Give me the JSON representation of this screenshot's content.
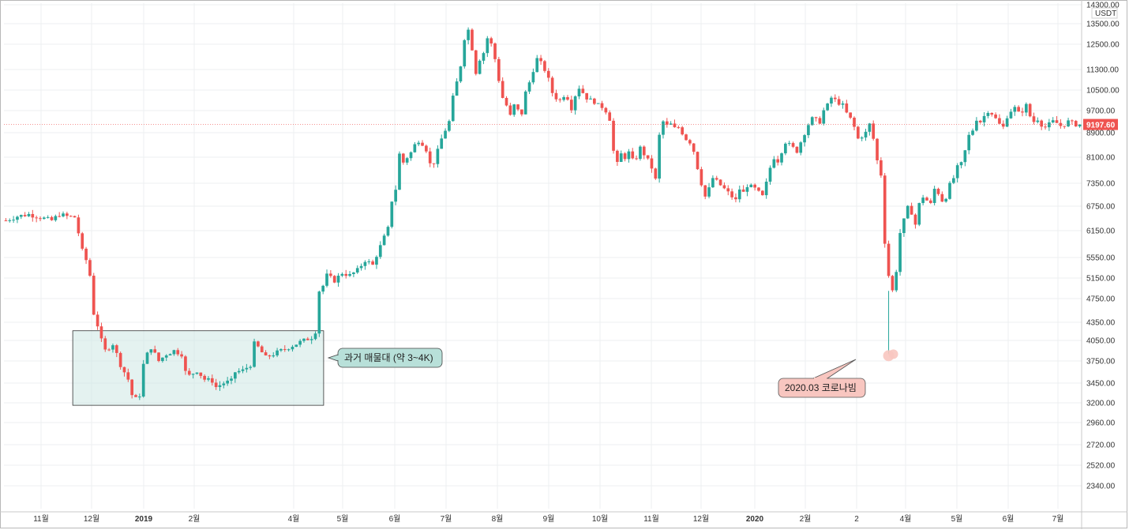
{
  "chart_data": {
    "type": "candlestick",
    "currency": "USDT",
    "last_price_label": "9197.60",
    "y_ticks": [
      "14300.00",
      "13500.00",
      "12500.00",
      "11300.00",
      "10500.00",
      "9700.00",
      "8900.00",
      "8100.00",
      "7350.00",
      "6750.00",
      "6150.00",
      "5550.00",
      "5150.00",
      "4750.00",
      "4350.00",
      "4050.00",
      "3750.00",
      "3450.00",
      "3200.00",
      "2960.00",
      "2720.00",
      "2520.00",
      "2340.00"
    ],
    "x_ticks": [
      {
        "label": "11월",
        "bold": false
      },
      {
        "label": "12월",
        "bold": false
      },
      {
        "label": "2019",
        "bold": true
      },
      {
        "label": "2월",
        "bold": false
      },
      {
        "label": "4월",
        "bold": false
      },
      {
        "label": "5월",
        "bold": false
      },
      {
        "label": "6월",
        "bold": false
      },
      {
        "label": "7월",
        "bold": false
      },
      {
        "label": "8월",
        "bold": false
      },
      {
        "label": "9월",
        "bold": false
      },
      {
        "label": "10월",
        "bold": false
      },
      {
        "label": "11월",
        "bold": false
      },
      {
        "label": "12월",
        "bold": false
      },
      {
        "label": "2020",
        "bold": true
      },
      {
        "label": "2월",
        "bold": false
      },
      {
        "label": "2",
        "bold": false
      },
      {
        "label": "4월",
        "bold": false
      },
      {
        "label": "5월",
        "bold": false
      },
      {
        "label": "6월",
        "bold": false
      },
      {
        "label": "7월",
        "bold": false
      }
    ],
    "price_path": [
      [
        0,
        6400
      ],
      [
        3,
        6500
      ],
      [
        6,
        6550
      ],
      [
        10,
        6450
      ],
      [
        12,
        6400
      ],
      [
        14,
        6550
      ],
      [
        16,
        6500
      ],
      [
        18,
        6480
      ],
      [
        19,
        6100
      ],
      [
        20,
        5700
      ],
      [
        21,
        5500
      ],
      [
        22,
        5200
      ],
      [
        23,
        4500
      ],
      [
        24,
        4300
      ],
      [
        25,
        4050
      ],
      [
        26,
        3900
      ],
      [
        28,
        4000
      ],
      [
        30,
        3700
      ],
      [
        32,
        3500
      ],
      [
        33,
        3300
      ],
      [
        34,
        3250
      ],
      [
        35,
        3300
      ],
      [
        36,
        3700
      ],
      [
        37,
        3850
      ],
      [
        38,
        3950
      ],
      [
        40,
        3750
      ],
      [
        42,
        3850
      ],
      [
        44,
        3900
      ],
      [
        46,
        3850
      ],
      [
        47,
        3600
      ],
      [
        48,
        3550
      ],
      [
        50,
        3620
      ],
      [
        52,
        3500
      ],
      [
        54,
        3480
      ],
      [
        55,
        3400
      ],
      [
        57,
        3450
      ],
      [
        59,
        3480
      ],
      [
        60,
        3600
      ],
      [
        62,
        3620
      ],
      [
        64,
        3700
      ],
      [
        65,
        4000
      ],
      [
        66,
        3950
      ],
      [
        68,
        3800
      ],
      [
        70,
        3850
      ],
      [
        72,
        3900
      ],
      [
        74,
        3950
      ],
      [
        76,
        4000
      ],
      [
        78,
        4050
      ],
      [
        80,
        4100
      ],
      [
        81,
        4200
      ],
      [
        82,
        4900
      ],
      [
        83,
        5000
      ],
      [
        84,
        5200
      ],
      [
        86,
        5100
      ],
      [
        88,
        5250
      ],
      [
        90,
        5200
      ],
      [
        92,
        5300
      ],
      [
        94,
        5500
      ],
      [
        96,
        5400
      ],
      [
        98,
        5800
      ],
      [
        100,
        6200
      ],
      [
        101,
        6900
      ],
      [
        102,
        7200
      ],
      [
        103,
        8200
      ],
      [
        104,
        7950
      ],
      [
        105,
        8100
      ],
      [
        106,
        8250
      ],
      [
        107,
        8500
      ],
      [
        108,
        8650
      ],
      [
        109,
        8550
      ],
      [
        110,
        8350
      ],
      [
        111,
        7900
      ],
      [
        112,
        7950
      ],
      [
        113,
        8300
      ],
      [
        114,
        8700
      ],
      [
        115,
        9000
      ],
      [
        116,
        9300
      ],
      [
        117,
        10200
      ],
      [
        118,
        10800
      ],
      [
        119,
        11500
      ],
      [
        120,
        12800
      ],
      [
        121,
        13200
      ],
      [
        122,
        12300
      ],
      [
        123,
        11200
      ],
      [
        124,
        11800
      ],
      [
        125,
        12100
      ],
      [
        126,
        12800
      ],
      [
        127,
        12500
      ],
      [
        128,
        11800
      ],
      [
        129,
        10900
      ],
      [
        130,
        10200
      ],
      [
        131,
        9900
      ],
      [
        132,
        9500
      ],
      [
        133,
        9900
      ],
      [
        134,
        9700
      ],
      [
        135,
        9600
      ],
      [
        136,
        10400
      ],
      [
        137,
        10800
      ],
      [
        138,
        11300
      ],
      [
        139,
        11800
      ],
      [
        140,
        11600
      ],
      [
        141,
        11300
      ],
      [
        142,
        10900
      ],
      [
        143,
        10400
      ],
      [
        144,
        10200
      ],
      [
        145,
        10100
      ],
      [
        146,
        10300
      ],
      [
        147,
        10200
      ],
      [
        148,
        9800
      ],
      [
        149,
        10300
      ],
      [
        150,
        10600
      ],
      [
        151,
        10400
      ],
      [
        152,
        10200
      ],
      [
        153,
        10100
      ],
      [
        154,
        10050
      ],
      [
        155,
        9900
      ],
      [
        156,
        9850
      ],
      [
        157,
        9700
      ],
      [
        158,
        9400
      ],
      [
        159,
        8300
      ],
      [
        160,
        7900
      ],
      [
        161,
        8200
      ],
      [
        162,
        8100
      ],
      [
        163,
        8250
      ],
      [
        164,
        8000
      ],
      [
        165,
        8100
      ],
      [
        166,
        8400
      ],
      [
        167,
        8200
      ],
      [
        168,
        8000
      ],
      [
        169,
        7800
      ],
      [
        170,
        7450
      ],
      [
        171,
        8800
      ],
      [
        172,
        9300
      ],
      [
        173,
        9150
      ],
      [
        174,
        9200
      ],
      [
        175,
        9050
      ],
      [
        176,
        9100
      ],
      [
        177,
        8900
      ],
      [
        178,
        8700
      ],
      [
        179,
        8600
      ],
      [
        180,
        8300
      ],
      [
        181,
        7800
      ],
      [
        182,
        7350
      ],
      [
        183,
        7000
      ],
      [
        184,
        7200
      ],
      [
        185,
        7500
      ],
      [
        186,
        7400
      ],
      [
        187,
        7300
      ],
      [
        188,
        7200
      ],
      [
        189,
        7100
      ],
      [
        190,
        7000
      ],
      [
        191,
        6900
      ],
      [
        192,
        7200
      ],
      [
        193,
        7100
      ],
      [
        194,
        7300
      ],
      [
        195,
        7250
      ],
      [
        196,
        7200
      ],
      [
        197,
        7100
      ],
      [
        198,
        7000
      ],
      [
        199,
        7350
      ],
      [
        200,
        7800
      ],
      [
        201,
        8100
      ],
      [
        202,
        8000
      ],
      [
        203,
        8300
      ],
      [
        204,
        8600
      ],
      [
        205,
        8500
      ],
      [
        206,
        8400
      ],
      [
        207,
        8300
      ],
      [
        208,
        8600
      ],
      [
        209,
        8900
      ],
      [
        210,
        9200
      ],
      [
        211,
        9400
      ],
      [
        212,
        9350
      ],
      [
        213,
        9300
      ],
      [
        214,
        9700
      ],
      [
        215,
        9900
      ],
      [
        216,
        10200
      ],
      [
        217,
        10100
      ],
      [
        218,
        10000
      ],
      [
        219,
        9900
      ],
      [
        220,
        9600
      ],
      [
        221,
        9400
      ],
      [
        222,
        9100
      ],
      [
        223,
        8700
      ],
      [
        224,
        8800
      ],
      [
        225,
        8900
      ],
      [
        226,
        9200
      ],
      [
        227,
        8700
      ],
      [
        228,
        8000
      ],
      [
        229,
        7600
      ],
      [
        230,
        5900
      ],
      [
        231,
        5200
      ],
      [
        232,
        4900
      ],
      [
        233,
        5300
      ],
      [
        234,
        6100
      ],
      [
        235,
        6400
      ],
      [
        236,
        6700
      ],
      [
        237,
        6600
      ],
      [
        238,
        6300
      ],
      [
        239,
        6800
      ],
      [
        240,
        7000
      ],
      [
        241,
        6900
      ],
      [
        242,
        6800
      ],
      [
        243,
        7200
      ],
      [
        244,
        7100
      ],
      [
        245,
        6900
      ],
      [
        246,
        7000
      ],
      [
        247,
        7300
      ],
      [
        248,
        7500
      ],
      [
        249,
        7800
      ],
      [
        250,
        7900
      ],
      [
        251,
        8300
      ],
      [
        252,
        8800
      ],
      [
        253,
        9000
      ],
      [
        254,
        9400
      ],
      [
        255,
        9300
      ],
      [
        256,
        9500
      ],
      [
        257,
        9700
      ],
      [
        258,
        9600
      ],
      [
        259,
        9400
      ],
      [
        260,
        9200
      ],
      [
        261,
        9100
      ],
      [
        262,
        9500
      ],
      [
        263,
        9700
      ],
      [
        264,
        9800
      ],
      [
        265,
        9600
      ],
      [
        266,
        9700
      ],
      [
        267,
        9900
      ],
      [
        268,
        9500
      ],
      [
        269,
        9300
      ],
      [
        270,
        9400
      ],
      [
        271,
        9200
      ],
      [
        272,
        9100
      ],
      [
        273,
        9200
      ],
      [
        274,
        9300
      ],
      [
        275,
        9250
      ],
      [
        276,
        9150
      ],
      [
        277,
        9200
      ],
      [
        278,
        9300
      ],
      [
        279,
        9250
      ],
      [
        280,
        9200
      ],
      [
        281,
        9197.6
      ]
    ],
    "annotations": [
      {
        "id": "support-zone",
        "label": "과거 매물대 (약 3~4K)",
        "from_bar": 18,
        "to_bar": 81,
        "low": 3170,
        "high": 4210,
        "color": "#cde8e4"
      },
      {
        "id": "corona",
        "label": "2020.03 코로나빔",
        "bar": 231,
        "price": 3850,
        "color": "#f8c6c0"
      }
    ],
    "up_color": "#26a69a",
    "down_color": "#ef5350"
  }
}
